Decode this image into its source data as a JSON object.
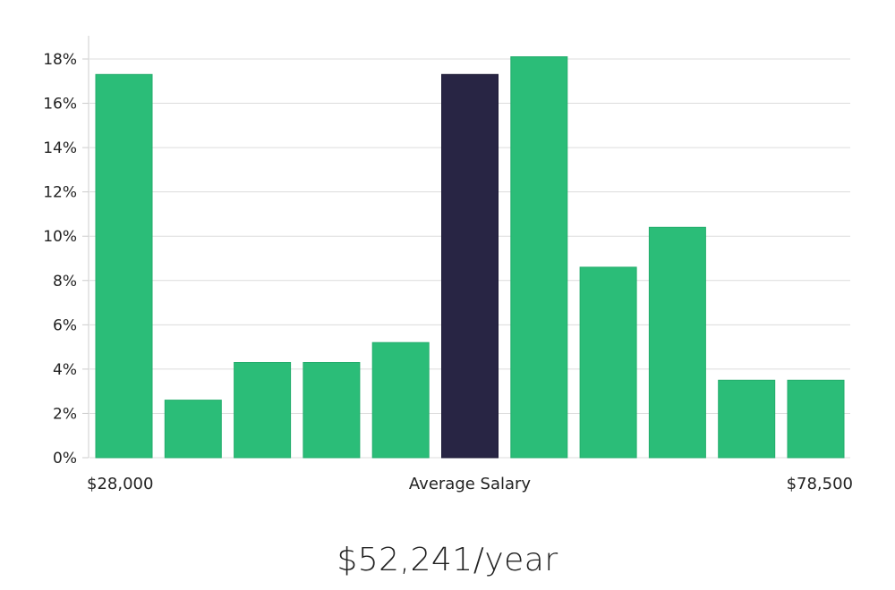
{
  "chart_data": {
    "type": "bar",
    "values": [
      17.3,
      2.6,
      4.3,
      4.3,
      5.2,
      17.3,
      18.1,
      8.6,
      10.4,
      3.5,
      3.5
    ],
    "highlight_index": 5,
    "ylim": [
      0,
      18
    ],
    "y_ticks": [
      "0%",
      "2%",
      "4%",
      "6%",
      "8%",
      "10%",
      "12%",
      "14%",
      "16%",
      "18%"
    ],
    "x_labels": {
      "left": "$28,000",
      "center": "Average Salary",
      "right": "$78,500"
    },
    "grid": true,
    "colors": {
      "bar": "#2bbd78",
      "highlight": "#282544",
      "grid": "#dcdcdc",
      "axis": "#cccccc"
    }
  },
  "summary": {
    "salary_text": "$52,241/year"
  }
}
